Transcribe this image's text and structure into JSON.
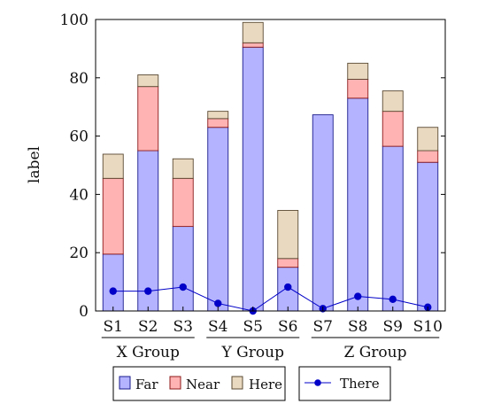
{
  "chart_data": {
    "type": "bar",
    "stacked": true,
    "categories": [
      "S1",
      "S2",
      "S3",
      "S4",
      "S5",
      "S6",
      "S7",
      "S8",
      "S9",
      "S10"
    ],
    "groups": [
      {
        "label": "X Group",
        "members": [
          "S1",
          "S2",
          "S3"
        ]
      },
      {
        "label": "Y Group",
        "members": [
          "S4",
          "S5",
          "S6"
        ]
      },
      {
        "label": "Z Group",
        "members": [
          "S7",
          "S8",
          "S9",
          "S10"
        ]
      }
    ],
    "series": [
      {
        "name": "Far",
        "kind": "bar",
        "color": "#b3b3ff",
        "stroke": "#1a1a8c",
        "values": [
          19.5,
          55,
          29,
          63,
          90.5,
          15,
          67.3,
          73,
          56.5,
          51
        ]
      },
      {
        "name": "Near",
        "kind": "bar",
        "color": "#ffb3b3",
        "stroke": "#8c1a1a",
        "values": [
          26,
          22,
          16.5,
          3,
          1.5,
          3,
          0,
          6.5,
          12,
          4
        ]
      },
      {
        "name": "Here",
        "kind": "bar",
        "color": "#ead9c1",
        "stroke": "#5a4a33",
        "values": [
          8.3,
          4,
          6.7,
          2.5,
          7,
          16.5,
          0,
          5.5,
          7,
          8
        ]
      },
      {
        "name": "There",
        "kind": "line",
        "color": "#0000c8",
        "values": [
          6.8,
          6.8,
          8.2,
          2.6,
          0,
          8.2,
          0.8,
          5,
          4,
          1.3
        ]
      }
    ],
    "ylabel": "label",
    "xlabel": "",
    "ylim": [
      0,
      100
    ],
    "yticks": [
      0,
      20,
      40,
      60,
      80,
      100
    ],
    "grid": false,
    "legend_placement": "bottom"
  }
}
